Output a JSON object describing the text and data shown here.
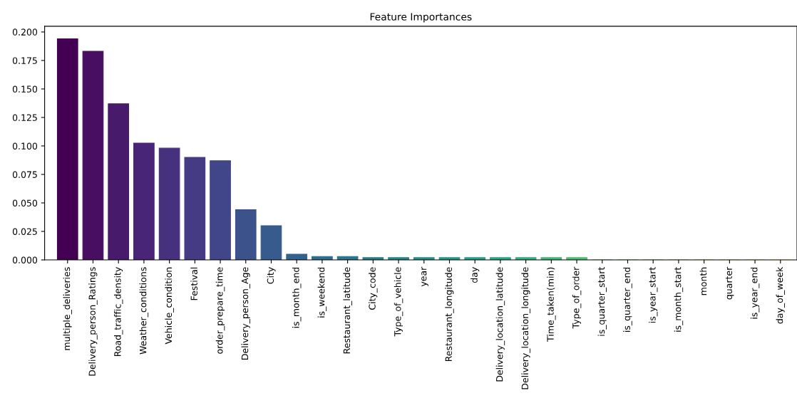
{
  "chart_data": {
    "type": "bar",
    "title": "Feature Importances",
    "categories": [
      "multiple_deliveries",
      "Delivery_person_Ratings",
      "Road_traffic_density",
      "Weather_conditions",
      "Vehicle_condition",
      "Festival",
      "order_prepare_time",
      "Delivery_person_Age",
      "City",
      "is_month_end",
      "is_weekend",
      "Restaurant_latitude",
      "City_code",
      "Type_of_vehicle",
      "year",
      "Restaurant_longitude",
      "day",
      "Delivery_location_latitude",
      "Delivery_location_longitude",
      "Time_taken(min)",
      "Type_of_order",
      "is_quarter_start",
      "is_quarter_end",
      "is_year_start",
      "is_month_start",
      "month",
      "quarter",
      "is_year_end",
      "day_of_week"
    ],
    "values": [
      0.194,
      0.183,
      0.137,
      0.1025,
      0.098,
      0.09,
      0.087,
      0.044,
      0.03,
      0.005,
      0.003,
      0.003,
      0.002,
      0.002,
      0.002,
      0.002,
      0.002,
      0.002,
      0.002,
      0.002,
      0.002,
      0,
      0,
      0,
      0,
      0,
      0,
      0,
      0
    ],
    "colors": [
      "#440154",
      "#470e61",
      "#481a6c",
      "#482576",
      "#46317e",
      "#443b84",
      "#404688",
      "#3b528b",
      "#375b8d",
      "#33638d",
      "#2e6d8e",
      "#2b768e",
      "#277f8e",
      "#24878e",
      "#21918c",
      "#1f9a8a",
      "#20a386",
      "#24aa83",
      "#2db27d",
      "#3bbb75",
      "#48c16e",
      "#5ec962",
      "#73d056",
      "#89d548",
      "#9fda3a",
      "#b8de29",
      "#d0e11c",
      "#e7e419",
      "#fde725"
    ],
    "ylim": [
      0,
      0.205
    ],
    "yticks": [
      {
        "value": 0,
        "label": "0.000"
      },
      {
        "value": 0.025,
        "label": "0.025"
      },
      {
        "value": 0.05,
        "label": "0.050"
      },
      {
        "value": 0.075,
        "label": "0.075"
      },
      {
        "value": 0.1,
        "label": "0.100"
      },
      {
        "value": 0.125,
        "label": "0.125"
      },
      {
        "value": 0.15,
        "label": "0.150"
      },
      {
        "value": 0.175,
        "label": "0.175"
      },
      {
        "value": 0.2,
        "label": "0.200"
      }
    ],
    "grid": false,
    "legend": false
  }
}
